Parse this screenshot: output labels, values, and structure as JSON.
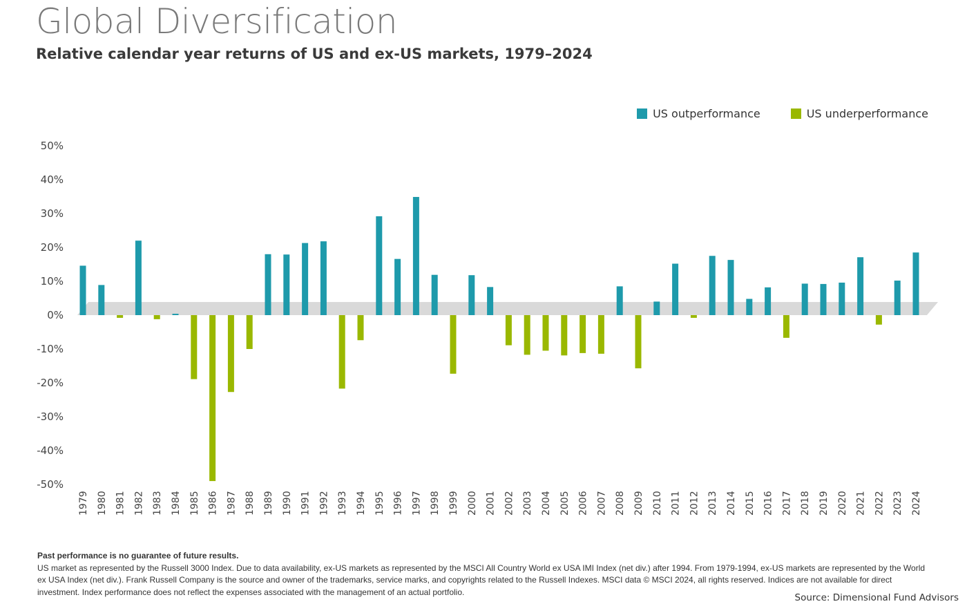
{
  "colors": {
    "outperformance": "#1e9aab",
    "underperformance": "#9ab800",
    "zero_band": "#d9d9d9",
    "title": "#7a7a7a"
  },
  "legend": {
    "outperformance_label": "US outperformance",
    "underperformance_label": "US underperformance"
  },
  "footnote": {
    "heading": "Past performance is no guarantee of future results.",
    "body": "US market as represented by the Russell 3000 Index. Due to data availability, ex-US markets as represented by the MSCI All Country World ex USA IMI Index (net div.) after 1994. From 1979-1994, ex-US markets are represented by the World ex USA Index (net div.). Frank Russell Company is the source and owner of the trademarks, service marks, and copyrights related to the Russell Indexes. MSCI data © MSCI 2024, all rights reserved. Indices are not available for direct investment. Index performance does not reflect the expenses associated with the management of an actual portfolio."
  },
  "source": "Source: Dimensional Fund Advisors",
  "chart_data": {
    "type": "bar",
    "title": "Global Diversification",
    "subtitle": "Relative calendar year returns of US and ex-US markets, 1979–2024",
    "xlabel": "",
    "ylabel": "",
    "ylim": [
      -50,
      50
    ],
    "yticks": [
      50,
      40,
      30,
      20,
      10,
      0,
      -10,
      -20,
      -30,
      -40,
      -50
    ],
    "ytick_labels": [
      "50%",
      "40%",
      "30%",
      "20%",
      "10%",
      "0%",
      "-10%",
      "-20%",
      "-30%",
      "-40%",
      "-50%"
    ],
    "grid": false,
    "legend_position": "top-right",
    "categories": [
      "1979",
      "1980",
      "1981",
      "1982",
      "1983",
      "1984",
      "1985",
      "1986",
      "1987",
      "1988",
      "1989",
      "1990",
      "1991",
      "1992",
      "1993",
      "1994",
      "1995",
      "1996",
      "1997",
      "1998",
      "1999",
      "2000",
      "2001",
      "2002",
      "2003",
      "2004",
      "2005",
      "2006",
      "2007",
      "2008",
      "2009",
      "2010",
      "2011",
      "2012",
      "2013",
      "2014",
      "2015",
      "2016",
      "2017",
      "2018",
      "2019",
      "2020",
      "2021",
      "2022",
      "2023",
      "2024"
    ],
    "values": [
      14.6,
      8.9,
      -0.8,
      22.0,
      -1.2,
      0.4,
      -18.9,
      -49.0,
      -22.7,
      -10.0,
      18.0,
      17.9,
      21.3,
      21.8,
      -21.7,
      -7.4,
      29.2,
      16.6,
      34.9,
      11.9,
      -17.3,
      11.8,
      8.3,
      -8.9,
      -11.7,
      -10.5,
      -11.9,
      -11.2,
      -11.4,
      8.5,
      -15.7,
      4.0,
      15.2,
      -0.8,
      17.5,
      16.3,
      4.8,
      8.2,
      -6.7,
      9.3,
      9.2,
      9.6,
      17.1,
      -2.8,
      10.2,
      18.5
    ]
  }
}
